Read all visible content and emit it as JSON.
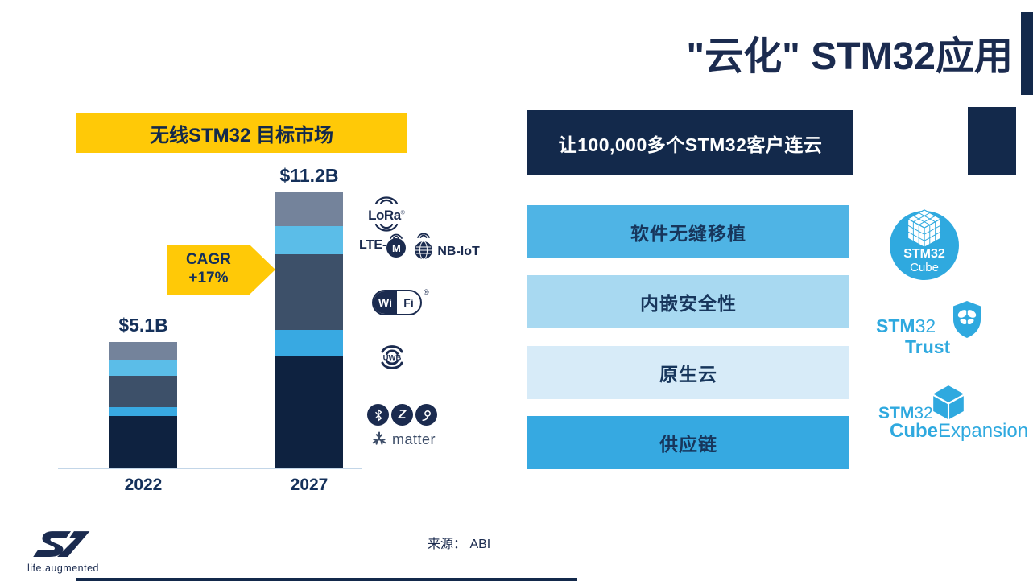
{
  "slide": {
    "title": "\"云化\" STM32应用",
    "source_label": "来源： ABI",
    "brand_tagline": "life.augmented"
  },
  "colors": {
    "navy": "#13294B",
    "title_navy": "#1B2B4F",
    "st_blue": "#2FA9DF",
    "yellow": "#FFC907"
  },
  "chart_data": {
    "type": "bar",
    "subtype": "stacked",
    "title": "无线STM32 目标市场",
    "categories": [
      "2022",
      "2027"
    ],
    "totals": [
      "$5.1B",
      "$11.2B"
    ],
    "unit": "billion USD",
    "ylim": [
      0,
      12
    ],
    "grid": false,
    "legend": "icons column at right (LoRa / LTE-M / NB-IoT / Wi-Fi / UWB / Bluetooth-Zigbee-Thread-Matter)",
    "series": [
      {
        "key": "ble_zigbee_thread_matter",
        "name": "Bluetooth / Zigbee / Thread / Matter",
        "color": "#0E2240",
        "values": [
          2.1,
          4.55
        ]
      },
      {
        "key": "uwb",
        "name": "UWB",
        "color": "#38A9E2",
        "values": [
          0.35,
          1.05
        ]
      },
      {
        "key": "wifi",
        "name": "Wi-Fi",
        "color": "#3D5069",
        "values": [
          1.3,
          3.1
        ]
      },
      {
        "key": "lte_m_nb_iot",
        "name": "LTE-M / NB-IoT",
        "color": "#5BBDE8",
        "values": [
          0.65,
          1.15
        ]
      },
      {
        "key": "lora",
        "name": "LoRa",
        "color": "#74839B",
        "values": [
          0.7,
          1.35
        ]
      }
    ],
    "annotation": {
      "line1": "CAGR",
      "line2": "+17%"
    }
  },
  "wireless": {
    "lora": {
      "label": "LoRa",
      "reg_mark": "®"
    },
    "lte_m": {
      "label": "LTE-",
      "badge": "M"
    },
    "nb_iot": {
      "label": "NB-IoT"
    },
    "wifi": {
      "left": "Wi",
      "right": "Fi",
      "reg_mark": "®"
    },
    "uwb": {
      "label": "UWB"
    },
    "zigbee": {
      "label": "Z"
    },
    "matter": {
      "label": "matter"
    }
  },
  "right_panel": {
    "banner": "让100,000多个STM32客户连云",
    "features": [
      {
        "label": "软件无缝移植",
        "color": "#4FB4E5"
      },
      {
        "label": "内嵌安全性",
        "color": "#A8D9F1"
      },
      {
        "label": "原生云",
        "color": "#D7EBF8"
      },
      {
        "label": "供应链",
        "color": "#36A9E1"
      }
    ],
    "logos": {
      "cube": {
        "line1": "STM32",
        "line2": "Cube"
      },
      "trust": {
        "stm": "STM",
        "num": "32",
        "word": "Trust"
      },
      "cube_expansion": {
        "stm": "STM",
        "num": "32",
        "bold": "Cube",
        "regular": "Expansion"
      }
    }
  }
}
